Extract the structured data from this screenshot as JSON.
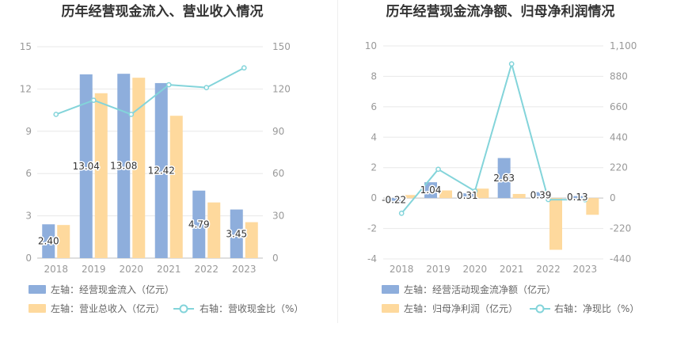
{
  "chart_data": [
    {
      "type": "bar",
      "title": "历年经营现金流入、营业收入情况",
      "categories": [
        "2018",
        "2019",
        "2020",
        "2021",
        "2022",
        "2023"
      ],
      "axes": {
        "left": {
          "range": [
            0,
            15
          ],
          "ticks": [
            "0",
            "3",
            "6",
            "9",
            "12",
            "15"
          ]
        },
        "right": {
          "range": [
            0,
            150
          ],
          "ticks": [
            "0",
            "30",
            "60",
            "90",
            "120",
            "150"
          ]
        }
      },
      "grid": true,
      "legend": "bottom",
      "series": [
        {
          "name": "左轴：经营现金流入（亿元）",
          "kind": "bar",
          "axis": "left",
          "color": "#8eaedc",
          "values": [
            2.4,
            13.04,
            13.08,
            12.42,
            4.79,
            3.45
          ],
          "labels": [
            "2.40",
            "13.04",
            "13.08",
            "12.42",
            "4.79",
            "3.45"
          ]
        },
        {
          "name": "左轴：营业总收入（亿元）",
          "kind": "bar",
          "axis": "left",
          "color": "#fed99d",
          "values": [
            2.35,
            11.7,
            12.8,
            10.1,
            3.95,
            2.55
          ]
        },
        {
          "name": "右轴：营收现金比（%）",
          "kind": "line",
          "axis": "right",
          "color": "#83d4da",
          "values": [
            102,
            112,
            102,
            123,
            121,
            135
          ]
        }
      ]
    },
    {
      "type": "bar",
      "title": "历年经营现金流净额、归母净利润情况",
      "categories": [
        "2018",
        "2019",
        "2020",
        "2021",
        "2022",
        "2023"
      ],
      "axes": {
        "left": {
          "range": [
            -4,
            10
          ],
          "ticks": [
            "-4",
            "-2",
            "0",
            "2",
            "4",
            "6",
            "8",
            "10"
          ]
        },
        "right": {
          "range": [
            -440,
            1100
          ],
          "ticks": [
            "-440",
            "-220",
            "0",
            "220",
            "440",
            "660",
            "880",
            "1,100"
          ]
        }
      },
      "grid": true,
      "legend": "bottom",
      "series": [
        {
          "name": "左轴：经营活动现金流净额（亿元）",
          "kind": "bar",
          "axis": "left",
          "color": "#8eaedc",
          "values": [
            -0.22,
            1.04,
            0.31,
            2.63,
            0.39,
            0.13
          ],
          "labels": [
            "-0.22",
            "1.04",
            "0.31",
            "2.63",
            "0.39",
            "0.13"
          ]
        },
        {
          "name": "左轴：归母净利润（亿元）",
          "kind": "bar",
          "axis": "left",
          "color": "#fed99d",
          "values": [
            0.2,
            0.5,
            0.62,
            0.27,
            -3.4,
            -1.1
          ]
        },
        {
          "name": "右轴：净现比（%）",
          "kind": "line",
          "axis": "right",
          "color": "#83d4da",
          "values": [
            -110,
            208,
            50,
            970,
            -11,
            -12
          ]
        }
      ]
    }
  ]
}
